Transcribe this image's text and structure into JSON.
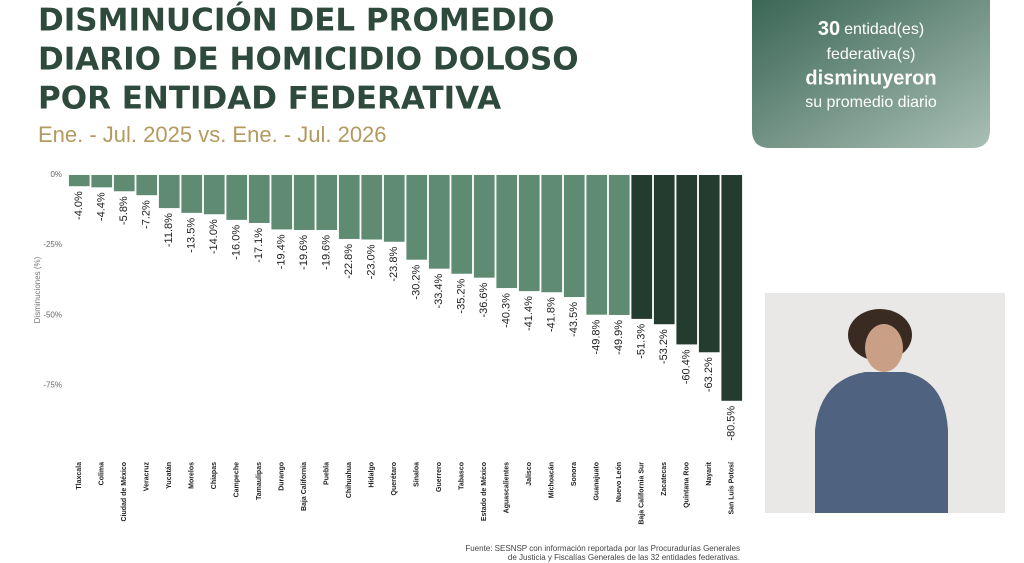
{
  "title_lines": [
    "DISMINUCIÓN DEL PROMEDIO",
    "DIARIO DE HOMICIDIO DOLOSO",
    "POR ENTIDAD FEDERATIVA"
  ],
  "subtitle": "Ene. - Jul. 2025 vs. Ene. - Jul. 2026",
  "summary_box": {
    "count": "30",
    "line1": "entidad(es)",
    "line2": "federativa(s)",
    "line3": "disminuyeron",
    "line4": "su promedio diario"
  },
  "source_lines": [
    "Fuente: SESNSP con información reportada por las Procuradurías Generales",
    "de Justicia y Fiscalías Generales de las 32 entidades federativas."
  ],
  "chart_data": {
    "type": "bar",
    "y_axis_label": "Disminuciones (%)",
    "categories": [
      "Tlaxcala",
      "Colima",
      "Ciudad de México",
      "Veracruz",
      "Yucatán",
      "Morelos",
      "Chiapas",
      "Campeche",
      "Tamaulipas",
      "Durango",
      "Baja California",
      "Puebla",
      "Chihuahua",
      "Hidalgo",
      "Querétaro",
      "Sinaloa",
      "Guerrero",
      "Tabasco",
      "Estado de México",
      "Aguascalientes",
      "Jalisco",
      "Michoacán",
      "Sonora",
      "Guanajuato",
      "Nuevo León",
      "Baja California Sur",
      "Zacatecas",
      "Quintana Roo",
      "Nayarit",
      "San Luis Potosí"
    ],
    "values": [
      -4.0,
      -4.4,
      -5.8,
      -7.2,
      -11.8,
      -13.5,
      -14.0,
      -16.0,
      -17.1,
      -19.4,
      -19.6,
      -19.6,
      -22.8,
      -23.0,
      -23.8,
      -30.2,
      -33.4,
      -35.2,
      -36.6,
      -40.3,
      -41.4,
      -41.8,
      -43.5,
      -49.8,
      -49.9,
      -51.3,
      -53.2,
      -60.4,
      -63.2,
      -80.5
    ],
    "value_labels": [
      "-4.0%",
      "-4.4%",
      "-5.8%",
      "-7.2%",
      "-11.8%",
      "-13.5%",
      "-14.0%",
      "-16.0%",
      "-17.1%",
      "-19.4%",
      "-19.6%",
      "-19.6%",
      "-22.8%",
      "-23.0%",
      "-23.8%",
      "-30.2%",
      "-33.4%",
      "-35.2%",
      "-36.6%",
      "-40.3%",
      "-41.4%",
      "-41.8%",
      "-43.5%",
      "-49.8%",
      "-49.9%",
      "-51.3%",
      "-53.2%",
      "-60.4%",
      "-63.2%",
      "-80.5%"
    ],
    "colors": [
      "#5f8b73",
      "#5f8b73",
      "#5f8b73",
      "#5f8b73",
      "#5f8b73",
      "#5f8b73",
      "#5f8b73",
      "#5f8b73",
      "#5f8b73",
      "#5f8b73",
      "#5f8b73",
      "#5f8b73",
      "#5f8b73",
      "#5f8b73",
      "#5f8b73",
      "#5f8b73",
      "#5f8b73",
      "#5f8b73",
      "#5f8b73",
      "#5f8b73",
      "#5f8b73",
      "#5f8b73",
      "#5f8b73",
      "#5f8b73",
      "#5f8b73",
      "#243c30",
      "#243c30",
      "#243c30",
      "#243c30",
      "#243c30"
    ],
    "ylim": [
      -82,
      0
    ],
    "yticks": [
      {
        "value": 0,
        "label": "0%"
      },
      {
        "value": -25,
        "label": "-25%"
      },
      {
        "value": -50,
        "label": "-50%"
      },
      {
        "value": -75,
        "label": "-75%"
      }
    ],
    "grid": false
  }
}
